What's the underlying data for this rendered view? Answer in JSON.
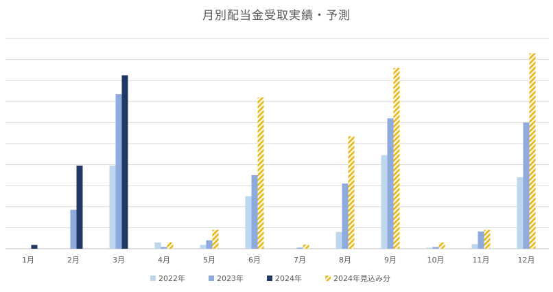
{
  "chart_data": {
    "type": "bar",
    "title": "月別配当金受取実績・予測",
    "xlabel": "",
    "ylabel": "",
    "categories": [
      "1月",
      "2月",
      "3月",
      "4月",
      "5月",
      "6月",
      "7月",
      "8月",
      "9月",
      "10月",
      "11月",
      "12月"
    ],
    "ylim": [
      0,
      10
    ],
    "grid": true,
    "legend_position": "bottom",
    "series": [
      {
        "name": "2022年",
        "color": "#bdd7ee",
        "pattern": "solid",
        "values": [
          0,
          0,
          3.95,
          0.3,
          0.18,
          2.5,
          0,
          0.8,
          4.45,
          0.05,
          0.22,
          3.4
        ]
      },
      {
        "name": "2023年",
        "color": "#8faadc",
        "pattern": "solid",
        "values": [
          0,
          1.85,
          7.35,
          0.08,
          0.4,
          3.5,
          0.05,
          3.1,
          6.2,
          0.08,
          0.82,
          6.0
        ]
      },
      {
        "name": "2024年",
        "color": "#203864",
        "pattern": "solid",
        "values": [
          0.18,
          3.95,
          8.25,
          null,
          null,
          null,
          null,
          null,
          null,
          null,
          null,
          null
        ]
      },
      {
        "name": "2024年見込み分",
        "color": "#ffc000",
        "pattern": "hatch",
        "values": [
          null,
          null,
          null,
          0.3,
          0.9,
          7.2,
          0.2,
          5.35,
          8.6,
          0.3,
          0.9,
          9.3
        ]
      }
    ]
  }
}
